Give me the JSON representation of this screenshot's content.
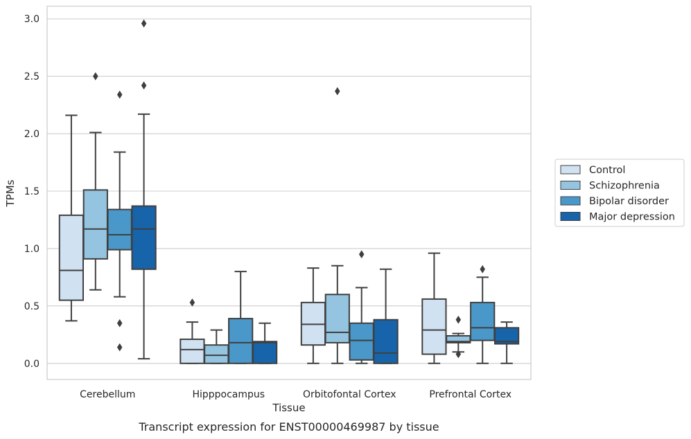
{
  "caption": "Transcript expression for ENST00000469987 by tissue",
  "chart_data": {
    "type": "box",
    "xlabel": "Tissue",
    "ylabel": "TPMs",
    "ylim": [
      -0.14,
      3.11
    ],
    "yticks": [
      "0.0",
      "0.5",
      "1.0",
      "1.5",
      "2.0",
      "2.5",
      "3.0"
    ],
    "grid": "horizontal",
    "legend_position": "right",
    "categories": [
      "Cerebellum",
      "Hipppocampus",
      "Orbitofontal Cortex",
      "Prefrontal Cortex"
    ],
    "series": [
      {
        "name": "Control",
        "color": "#d0e1f2",
        "boxes": [
          {
            "whislo": 0.37,
            "q1": 0.55,
            "med": 0.81,
            "q3": 1.29,
            "whishi": 2.16,
            "fliers": []
          },
          {
            "whislo": 0.0,
            "q1": 0.0,
            "med": 0.12,
            "q3": 0.21,
            "whishi": 0.36,
            "fliers": [
              0.53
            ]
          },
          {
            "whislo": 0.0,
            "q1": 0.16,
            "med": 0.34,
            "q3": 0.53,
            "whishi": 0.83,
            "fliers": []
          },
          {
            "whislo": 0.0,
            "q1": 0.08,
            "med": 0.29,
            "q3": 0.56,
            "whishi": 0.96,
            "fliers": []
          }
        ]
      },
      {
        "name": "Schizophrenia",
        "color": "#94c4df",
        "boxes": [
          {
            "whislo": 0.64,
            "q1": 0.91,
            "med": 1.17,
            "q3": 1.51,
            "whishi": 2.01,
            "fliers": [
              2.5
            ]
          },
          {
            "whislo": 0.0,
            "q1": 0.0,
            "med": 0.07,
            "q3": 0.16,
            "whishi": 0.29,
            "fliers": []
          },
          {
            "whislo": 0.0,
            "q1": 0.18,
            "med": 0.27,
            "q3": 0.6,
            "whishi": 0.85,
            "fliers": [
              2.37
            ]
          },
          {
            "whislo": 0.1,
            "q1": 0.18,
            "med": 0.19,
            "q3": 0.24,
            "whishi": 0.26,
            "fliers": [
              0.08,
              0.38
            ]
          }
        ]
      },
      {
        "name": "Bipolar disorder",
        "color": "#4a98c9",
        "boxes": [
          {
            "whislo": 0.58,
            "q1": 0.99,
            "med": 1.12,
            "q3": 1.34,
            "whishi": 1.84,
            "fliers": [
              0.35,
              0.14,
              2.34
            ]
          },
          {
            "whislo": 0.0,
            "q1": 0.0,
            "med": 0.18,
            "q3": 0.39,
            "whishi": 0.8,
            "fliers": []
          },
          {
            "whislo": 0.0,
            "q1": 0.03,
            "med": 0.2,
            "q3": 0.35,
            "whishi": 0.66,
            "fliers": [
              0.95
            ]
          },
          {
            "whislo": 0.0,
            "q1": 0.2,
            "med": 0.31,
            "q3": 0.53,
            "whishi": 0.75,
            "fliers": [
              0.82
            ]
          }
        ]
      },
      {
        "name": "Major depression",
        "color": "#1764ab",
        "boxes": [
          {
            "whislo": 0.04,
            "q1": 0.82,
            "med": 1.17,
            "q3": 1.37,
            "whishi": 2.17,
            "fliers": [
              2.42,
              2.96
            ]
          },
          {
            "whislo": 0.0,
            "q1": 0.0,
            "med": 0.18,
            "q3": 0.19,
            "whishi": 0.35,
            "fliers": []
          },
          {
            "whislo": 0.0,
            "q1": 0.0,
            "med": 0.09,
            "q3": 0.38,
            "whishi": 0.82,
            "fliers": []
          },
          {
            "whislo": 0.0,
            "q1": 0.17,
            "med": 0.19,
            "q3": 0.31,
            "whishi": 0.36,
            "fliers": []
          }
        ]
      }
    ]
  }
}
